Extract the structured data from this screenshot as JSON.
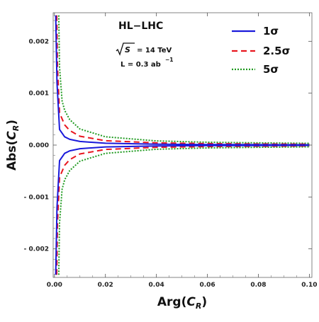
{
  "chart_data": {
    "type": "line",
    "xlabel": "Arg(C_R)",
    "ylabel": "Abs(C_R)",
    "xlim": [
      -0.0005,
      0.101
    ],
    "ylim": [
      -0.00255,
      0.00255
    ],
    "grid": false,
    "legend_position": "top-right",
    "x_ticks": [
      0.0,
      0.02,
      0.04,
      0.06,
      0.08,
      0.1
    ],
    "x_tick_labels": [
      "0.00",
      "0.02",
      "0.04",
      "0.06",
      "0.08",
      "0.10"
    ],
    "y_ticks": [
      0.002,
      0.001,
      0.0,
      -0.001,
      -0.002
    ],
    "y_tick_labels": [
      "0.002",
      "0.001",
      "0.000",
      "- 0.001",
      "- 0.002"
    ],
    "annotations": {
      "title": "HL−LHC",
      "energy_symbol": "S",
      "energy_value": "= 14 TeV",
      "lumi_prefix": "L = 0.3 ab",
      "lumi_exponent": "−1"
    },
    "series": [
      {
        "name": "1σ",
        "color": "#1a1adb",
        "style": "solid",
        "x": [
          0.0005,
          0.001,
          0.002,
          0.004,
          0.006,
          0.01,
          0.02,
          0.04,
          0.06,
          0.08,
          0.1
        ],
        "upper": [
          0.0025,
          0.0012,
          0.0003,
          0.00016,
          0.00011,
          7e-05,
          3.5e-05,
          1.7e-05,
          1.1e-05,
          8e-06,
          6e-06
        ],
        "lower": [
          -0.0025,
          -0.0012,
          -0.0003,
          -0.00016,
          -0.00011,
          -7e-05,
          -3.5e-05,
          -1.7e-05,
          -1.1e-05,
          -8e-06,
          -6e-06
        ]
      },
      {
        "name": "2.5σ",
        "color": "#e8161f",
        "style": "dashed",
        "x": [
          0.0009,
          0.0012,
          0.002,
          0.004,
          0.006,
          0.01,
          0.02,
          0.04,
          0.06,
          0.08,
          0.1
        ],
        "upper": [
          0.0025,
          0.0015,
          0.00062,
          0.00039,
          0.00028,
          0.00017,
          8.5e-05,
          4.2e-05,
          2.8e-05,
          2.1e-05,
          1.7e-05
        ],
        "lower": [
          -0.0025,
          -0.0015,
          -0.00062,
          -0.00039,
          -0.00028,
          -0.00017,
          -8.5e-05,
          -4.2e-05,
          -2.8e-05,
          -2.1e-05,
          -1.7e-05
        ]
      },
      {
        "name": "5σ",
        "color": "#1f9a1f",
        "style": "dotted",
        "x": [
          0.0017,
          0.002,
          0.003,
          0.004,
          0.006,
          0.01,
          0.02,
          0.04,
          0.06,
          0.08,
          0.1
        ],
        "upper": [
          0.0025,
          0.0015,
          0.00085,
          0.00067,
          0.00049,
          0.00031,
          0.00016,
          8e-05,
          5.5e-05,
          4.2e-05,
          3.4e-05
        ],
        "lower": [
          -0.0025,
          -0.0015,
          -0.00085,
          -0.00067,
          -0.00049,
          -0.00031,
          -0.00016,
          -8e-05,
          -5.5e-05,
          -4.2e-05,
          -3.4e-05
        ]
      }
    ]
  }
}
